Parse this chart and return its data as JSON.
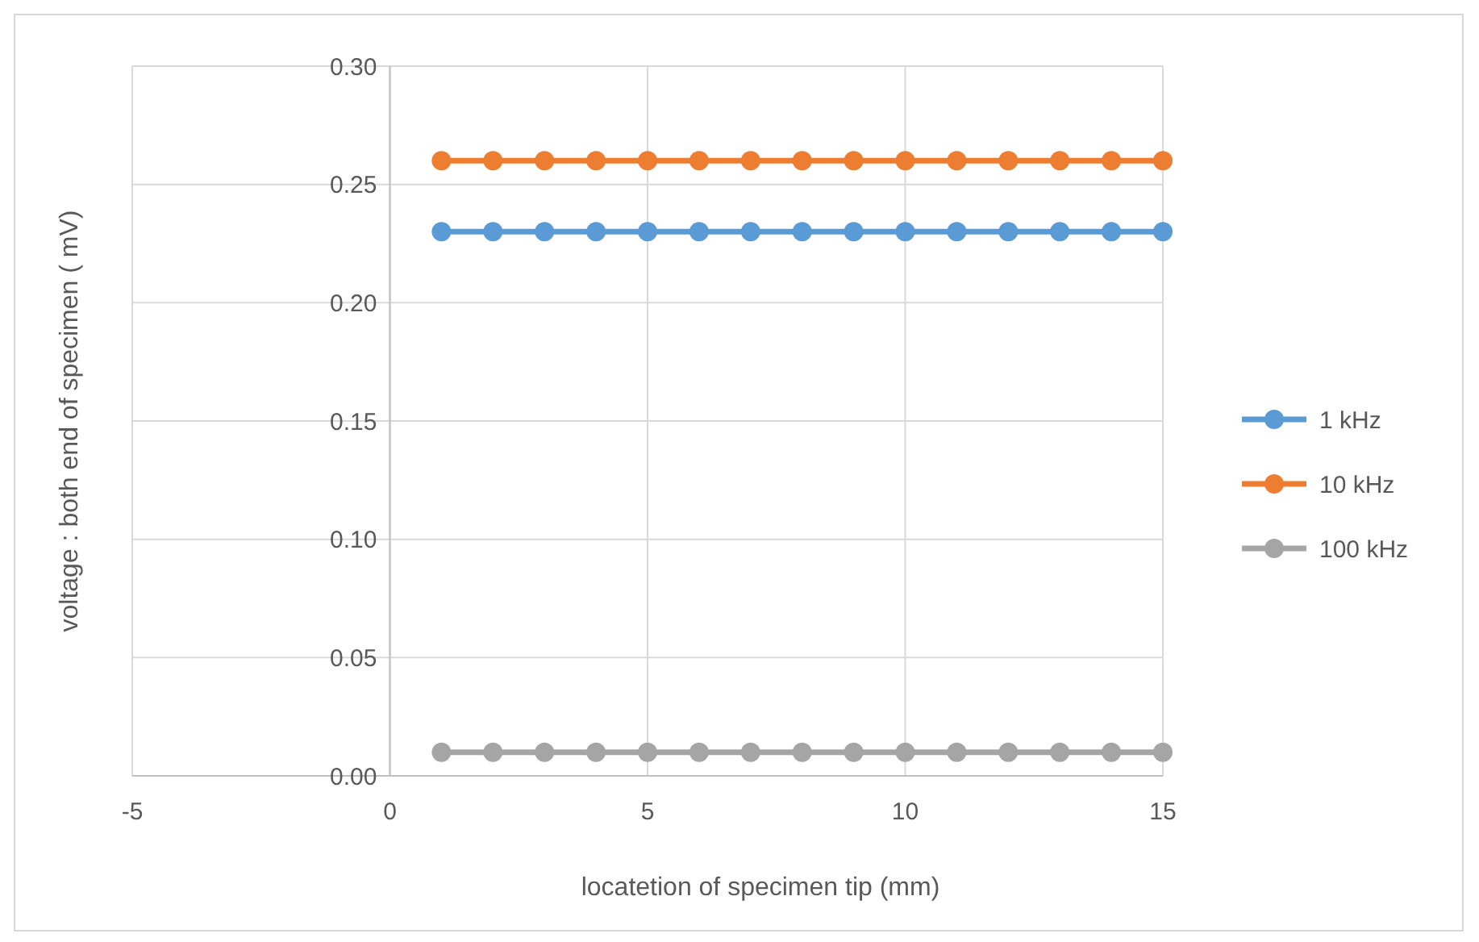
{
  "chart_data": {
    "type": "line",
    "xlabel": "locatetion of specimen tip (mm)",
    "ylabel": "voltage : both end of specimen ( mV)",
    "x": [
      1,
      2,
      3,
      4,
      5,
      6,
      7,
      8,
      9,
      10,
      11,
      12,
      13,
      14,
      15
    ],
    "xlim": [
      -5,
      15
    ],
    "xticks": [
      -5,
      0,
      5,
      10,
      15
    ],
    "ylim": [
      0,
      0.3
    ],
    "yticks": [
      {
        "value": 0,
        "label": "0.00"
      },
      {
        "value": 0.05,
        "label": "0.05"
      },
      {
        "value": 0.1,
        "label": "0.10"
      },
      {
        "value": 0.15,
        "label": "0.15"
      },
      {
        "value": 0.2,
        "label": "0.20"
      },
      {
        "value": 0.25,
        "label": "0.25"
      },
      {
        "value": 0.3,
        "label": "0.30"
      }
    ],
    "grid": true,
    "legend": "right",
    "marker": "circle",
    "line_style": "solid",
    "series": [
      {
        "name": "1 kHz",
        "color": "#5b9bd5",
        "values": [
          0.23,
          0.23,
          0.23,
          0.23,
          0.23,
          0.23,
          0.23,
          0.23,
          0.23,
          0.23,
          0.23,
          0.23,
          0.23,
          0.23,
          0.23
        ]
      },
      {
        "name": "10 kHz",
        "color": "#ed7d31",
        "values": [
          0.26,
          0.26,
          0.26,
          0.26,
          0.26,
          0.26,
          0.26,
          0.26,
          0.26,
          0.26,
          0.26,
          0.26,
          0.26,
          0.26,
          0.26
        ]
      },
      {
        "name": "100 kHz",
        "color": "#a5a5a5",
        "values": [
          0.01,
          0.01,
          0.01,
          0.01,
          0.01,
          0.01,
          0.01,
          0.01,
          0.01,
          0.01,
          0.01,
          0.01,
          0.01,
          0.01,
          0.01
        ]
      }
    ]
  }
}
